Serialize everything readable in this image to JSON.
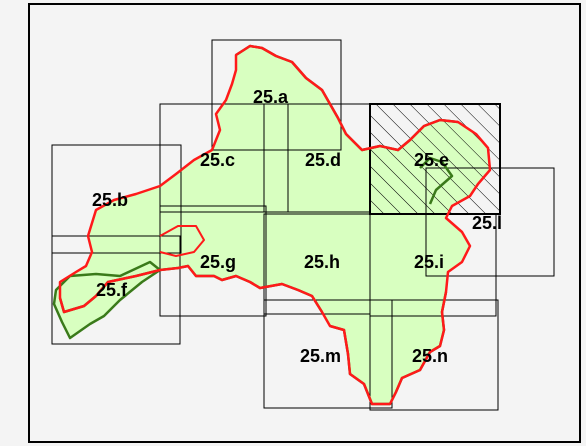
{
  "colors": {
    "background": "#f4f4f4",
    "frame": "#000000",
    "land_fill": "#d8ffc0",
    "boundary_red": "#ff1a1a",
    "boundary_green": "#3a7a1a",
    "grid": "#000000",
    "hatch": "#000000"
  },
  "tiles": [
    {
      "id": "a",
      "label": "25.a"
    },
    {
      "id": "b",
      "label": "25.b"
    },
    {
      "id": "c",
      "label": "25.c"
    },
    {
      "id": "d",
      "label": "25.d"
    },
    {
      "id": "e",
      "label": "25.e",
      "hatched": true
    },
    {
      "id": "f",
      "label": "25.f"
    },
    {
      "id": "g",
      "label": "25.g"
    },
    {
      "id": "h",
      "label": "25.h"
    },
    {
      "id": "i",
      "label": "25.i"
    },
    {
      "id": "l",
      "label": "25.l"
    },
    {
      "id": "m",
      "label": "25.m"
    },
    {
      "id": "n",
      "label": "25.n"
    }
  ]
}
